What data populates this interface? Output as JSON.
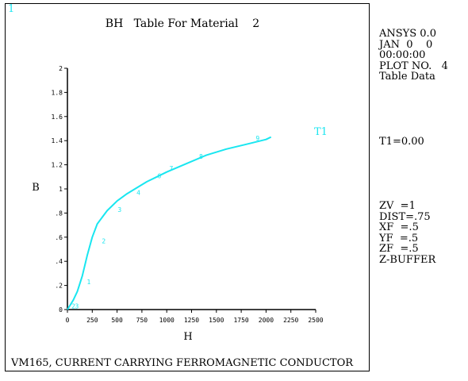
{
  "window_number": "1",
  "plot_title": "BH   Table For Material    2",
  "footer_text": "VM165, CURRENT CARRYING FERROMAGNETIC CONDUCTOR",
  "info_panel": {
    "lines_top": [
      "ANSYS 0.0",
      "JAN  0    0",
      "00:00:00",
      "PLOT NO.   4",
      "Table Data"
    ],
    "lines_mid": [
      "T1=0.00"
    ],
    "lines_bottom": [
      "ZV  =1",
      "DIST=.75",
      "XF  =.5",
      "YF  =.5",
      "ZF  =.5",
      "Z-BUFFER"
    ]
  },
  "colors": {
    "curve": "#19e6f0",
    "axis": "#000000"
  },
  "chart_data": {
    "type": "line",
    "title": "BH   Table For Material    2",
    "xlabel": "H",
    "ylabel": "B",
    "xlim": [
      0,
      2500
    ],
    "ylim": [
      0,
      2
    ],
    "x_ticks": [
      0,
      250,
      500,
      750,
      1000,
      1250,
      1500,
      1750,
      2000,
      2250,
      2500
    ],
    "x_tick_labels": [
      "0",
      "250",
      "500",
      "750",
      "1000",
      "1250",
      "1500",
      "1750",
      "2000",
      "2250",
      "2500"
    ],
    "y_ticks": [
      0,
      0.2,
      0.4,
      0.6,
      0.8,
      1.0,
      1.2,
      1.4,
      1.6,
      1.8,
      2.0
    ],
    "y_tick_labels": [
      "0",
      ".2",
      ".4",
      ".6",
      ".8",
      "1",
      "1.2",
      "1.4",
      "1.6",
      "1.8",
      "2"
    ],
    "grid": false,
    "series": [
      {
        "name": "T1",
        "x": [
          0,
          30,
          60,
          100,
          150,
          200,
          250,
          300,
          400,
          500,
          600,
          700,
          800,
          900,
          1000,
          1200,
          1400,
          1600,
          1800,
          2000,
          2050
        ],
        "y": [
          0,
          0.04,
          0.08,
          0.15,
          0.28,
          0.45,
          0.6,
          0.71,
          0.82,
          0.9,
          0.96,
          1.01,
          1.06,
          1.1,
          1.14,
          1.21,
          1.28,
          1.33,
          1.37,
          1.41,
          1.43
        ]
      }
    ],
    "point_markers": [
      {
        "label": "2",
        "x": 25,
        "y": 0.03
      },
      {
        "label": "3",
        "x": 60,
        "y": 0.03
      },
      {
        "label": "1",
        "x": 180,
        "y": 0.23
      },
      {
        "label": "2",
        "x": 330,
        "y": 0.57
      },
      {
        "label": "3",
        "x": 490,
        "y": 0.83
      },
      {
        "label": "4",
        "x": 680,
        "y": 0.97
      },
      {
        "label": "6",
        "x": 890,
        "y": 1.11
      },
      {
        "label": "7",
        "x": 1010,
        "y": 1.17
      },
      {
        "label": "8",
        "x": 1310,
        "y": 1.27
      },
      {
        "label": "9",
        "x": 1880,
        "y": 1.42
      }
    ]
  }
}
